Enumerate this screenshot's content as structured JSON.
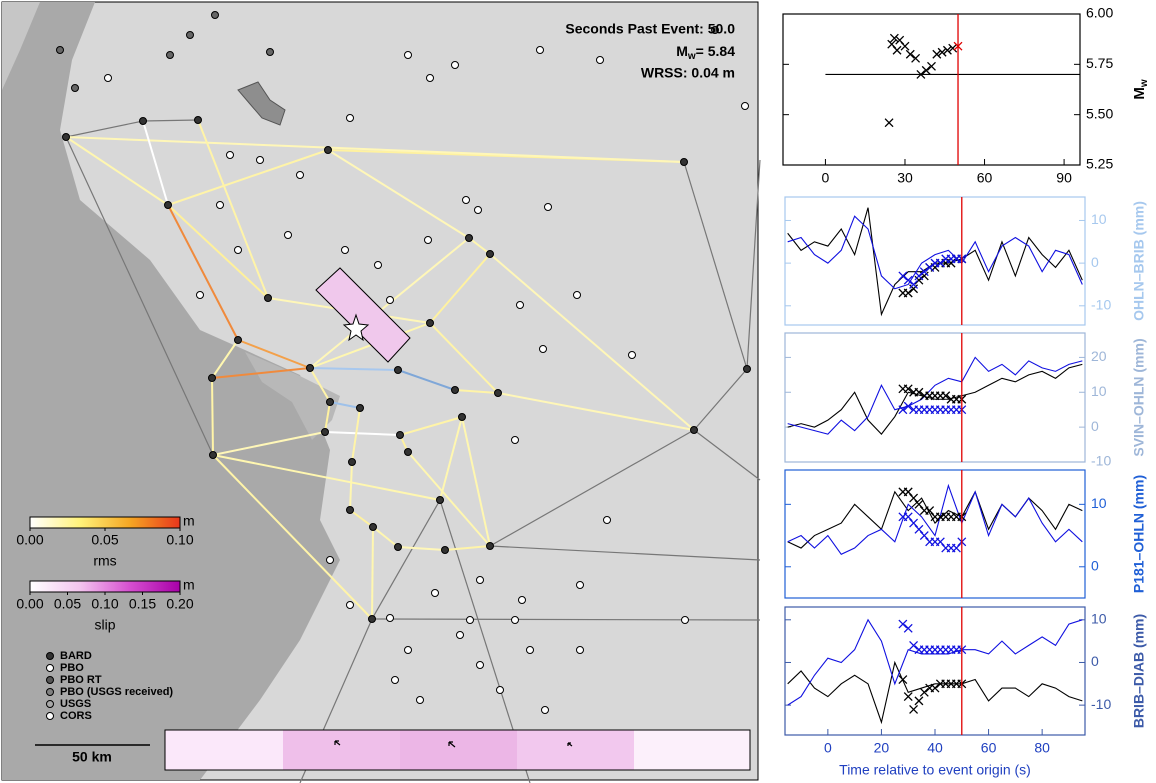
{
  "map": {
    "annotations": {
      "seconds": "Seconds Past Event: 50.0",
      "mw_symbol": "M",
      "mw_sub": "w",
      "mw_value": "= 5.84",
      "wrss": "WRSS: 0.04 m"
    },
    "colorbars": [
      {
        "label": "rms",
        "unit": "m",
        "lim": [
          0,
          0.1
        ],
        "colors": [
          "#ffffff",
          "#fff27a",
          "#f5a623",
          "#e8361c"
        ],
        "ticks": [
          {
            "value": 0,
            "label": "0.00"
          },
          {
            "value": 0.05,
            "label": "0.05"
          },
          {
            "value": 0.1,
            "label": "0.10"
          }
        ]
      },
      {
        "label": "slip",
        "unit": "m",
        "lim": [
          0,
          0.2
        ],
        "colors": [
          "#ffffff",
          "#f3c4ee",
          "#d64fd0",
          "#a800a8"
        ],
        "ticks": [
          {
            "value": 0,
            "label": "0.00"
          },
          {
            "value": 0.05,
            "label": "0.05"
          },
          {
            "value": 0.1,
            "label": "0.10"
          },
          {
            "value": 0.15,
            "label": "0.15"
          },
          {
            "value": 0.2,
            "label": "0.20"
          }
        ]
      }
    ],
    "legend": [
      {
        "label": "BARD",
        "color": "#333333"
      },
      {
        "label": "PBO",
        "color": "#ffffff"
      },
      {
        "label": "PBO RT",
        "color": "#555555"
      },
      {
        "label": "PBO (USGS received)",
        "color": "#808080"
      },
      {
        "label": "USGS",
        "color": "#a8a8a8"
      },
      {
        "label": "CORS",
        "color": "#ffffff"
      }
    ],
    "scale": "50 km"
  },
  "chart_data": [
    {
      "type": "scatter",
      "ylabel": "M",
      "ylabel_sub": "w",
      "axis_color": "#000000",
      "xlim": [
        -16,
        96
      ],
      "ylim": [
        5.25,
        6.0
      ],
      "xticks": [
        0,
        30,
        60,
        90
      ],
      "yticks": [
        5.25,
        {
          "value": 5.5,
          "label": "5.50"
        },
        5.75,
        {
          "value": 6.0,
          "label": "6.00"
        }
      ],
      "vline": 50,
      "series": [
        {
          "style": "line",
          "color": "#000000",
          "x": [
            0,
            96
          ],
          "values": [
            5.7,
            5.7
          ]
        },
        {
          "style": "cross",
          "color": "#000000",
          "x": [
            24,
            25,
            26,
            27,
            28,
            30,
            32,
            34,
            36,
            38,
            40,
            42,
            44,
            46,
            48
          ],
          "values": [
            5.46,
            5.85,
            5.88,
            5.82,
            5.87,
            5.84,
            5.8,
            5.78,
            5.7,
            5.72,
            5.74,
            5.8,
            5.81,
            5.82,
            5.83
          ]
        },
        {
          "style": "cross",
          "color": "#e00000",
          "x": [
            50
          ],
          "values": [
            5.84
          ]
        }
      ]
    },
    {
      "type": "line",
      "ylabel": "OHLN–BRIB (mm)",
      "axis_color": "#a6c8ee",
      "xlim": [
        -16,
        96
      ],
      "ylim": [
        -14.5,
        15.5
      ],
      "yticks": [
        -10,
        0,
        10
      ],
      "vline": 50,
      "series": [
        {
          "style": "line",
          "color": "#000000",
          "x": [
            -15,
            -10,
            -5,
            0,
            5,
            10,
            15,
            20,
            25,
            30,
            35,
            40,
            45,
            50,
            55,
            60,
            65,
            70,
            75,
            80,
            85,
            90,
            95
          ],
          "values": [
            7,
            3,
            5,
            4,
            8,
            2,
            13,
            -12,
            -5,
            -2,
            -2,
            0,
            0,
            1,
            3,
            -4,
            5,
            -3,
            6,
            2,
            -1,
            3,
            -4
          ]
        },
        {
          "style": "line",
          "color": "#1010e0",
          "x": [
            -15,
            -10,
            -5,
            0,
            5,
            10,
            15,
            20,
            25,
            30,
            35,
            40,
            45,
            50,
            55,
            60,
            65,
            70,
            75,
            80,
            85,
            90,
            95
          ],
          "values": [
            5,
            6,
            2,
            0,
            3,
            11,
            8,
            -3,
            -6,
            -5,
            0,
            2,
            3,
            0,
            5,
            -2,
            4,
            6,
            4,
            -2,
            3,
            2,
            -5
          ]
        },
        {
          "style": "cross",
          "color": "#000000",
          "x": [
            28,
            30,
            32,
            34,
            36,
            38,
            40,
            42,
            44,
            46,
            48,
            50
          ],
          "values": [
            -7,
            -7,
            -6,
            -4,
            -3,
            -1,
            -1,
            0,
            0,
            0,
            1,
            1
          ]
        },
        {
          "style": "cross",
          "color": "#1010e0",
          "x": [
            28,
            30,
            32,
            34,
            36,
            38,
            40,
            42,
            44,
            46,
            48,
            50
          ],
          "values": [
            -3,
            -4,
            -5,
            -3,
            -2,
            -1,
            0,
            0,
            1,
            1,
            1,
            1
          ]
        }
      ]
    },
    {
      "type": "line",
      "ylabel": "SVIN–OHLN (mm)",
      "axis_color": "#9eb6d8",
      "xlim": [
        -16,
        96
      ],
      "ylim": [
        -10,
        27
      ],
      "yticks": [
        -10,
        0,
        10,
        20
      ],
      "vline": 50,
      "series": [
        {
          "style": "line",
          "color": "#000000",
          "x": [
            -15,
            -10,
            -5,
            0,
            5,
            10,
            15,
            20,
            25,
            30,
            35,
            40,
            45,
            50,
            55,
            60,
            65,
            70,
            75,
            80,
            85,
            90,
            95
          ],
          "values": [
            0,
            1,
            0,
            2,
            5,
            10,
            2,
            -2,
            3,
            10,
            9,
            8,
            8,
            9,
            10,
            12,
            14,
            13,
            15,
            16,
            14,
            17,
            18
          ]
        },
        {
          "style": "line",
          "color": "#1010e0",
          "x": [
            -15,
            -10,
            -5,
            0,
            5,
            10,
            15,
            20,
            25,
            30,
            35,
            40,
            45,
            50,
            55,
            60,
            65,
            70,
            75,
            80,
            85,
            90,
            95
          ],
          "values": [
            1,
            0,
            -1,
            -2,
            2,
            -1,
            3,
            12,
            5,
            6,
            8,
            12,
            14,
            13,
            20,
            16,
            18,
            15,
            19,
            17,
            16,
            18,
            19
          ]
        },
        {
          "style": "cross",
          "color": "#000000",
          "x": [
            28,
            30,
            32,
            34,
            36,
            38,
            40,
            42,
            44,
            46,
            48,
            50
          ],
          "values": [
            11,
            11,
            10,
            10,
            9,
            9,
            9,
            9,
            9,
            8,
            8,
            8
          ]
        },
        {
          "style": "cross",
          "color": "#1010e0",
          "x": [
            28,
            30,
            32,
            34,
            36,
            38,
            40,
            42,
            44,
            46,
            48,
            50
          ],
          "values": [
            5,
            6,
            5,
            5,
            5,
            5,
            5,
            5,
            5,
            5,
            5,
            5
          ]
        }
      ]
    },
    {
      "type": "line",
      "ylabel": "P181–OHLN (mm)",
      "axis_color": "#1f5fd6",
      "xlim": [
        -16,
        96
      ],
      "ylim": [
        -5,
        15.5
      ],
      "yticks": [
        0,
        10
      ],
      "vline": 50,
      "series": [
        {
          "style": "line",
          "color": "#000000",
          "x": [
            -15,
            -10,
            -5,
            0,
            5,
            10,
            15,
            20,
            25,
            30,
            35,
            40,
            45,
            50,
            55,
            60,
            65,
            70,
            75,
            80,
            85,
            90,
            95
          ],
          "values": [
            4,
            3,
            5,
            6,
            7,
            10,
            8,
            6,
            12,
            9,
            11,
            7,
            9,
            8,
            12,
            6,
            10,
            8,
            11,
            9,
            6,
            10,
            9
          ]
        },
        {
          "style": "line",
          "color": "#1010e0",
          "x": [
            -15,
            -10,
            -5,
            0,
            5,
            10,
            15,
            20,
            25,
            30,
            35,
            40,
            45,
            50,
            55,
            60,
            65,
            70,
            75,
            80,
            85,
            90,
            95
          ],
          "values": [
            4,
            5,
            3,
            5,
            2,
            3,
            5,
            6,
            4,
            10,
            8,
            5,
            13,
            7,
            12,
            5,
            10,
            8,
            11,
            7,
            4,
            6,
            4
          ]
        },
        {
          "style": "cross",
          "color": "#000000",
          "x": [
            28,
            30,
            32,
            34,
            36,
            38,
            40,
            42,
            44,
            46,
            48,
            50
          ],
          "values": [
            12,
            12,
            11,
            10,
            9,
            9,
            8,
            8,
            8,
            8,
            8,
            8
          ]
        },
        {
          "style": "cross",
          "color": "#1010e0",
          "x": [
            28,
            30,
            32,
            34,
            36,
            38,
            40,
            42,
            44,
            46,
            48,
            50
          ],
          "values": [
            8,
            8,
            7,
            6,
            5,
            4,
            4,
            4,
            3,
            3,
            3,
            4
          ]
        }
      ]
    },
    {
      "type": "line",
      "ylabel": "BRIB–DIAB (mm)",
      "axis_color": "#3c5aa8",
      "xlabel": "Time relative to event origin (s)",
      "xlim": [
        -16,
        96
      ],
      "ylim": [
        -17,
        13
      ],
      "xticks": [
        0,
        20,
        40,
        60,
        80
      ],
      "yticks": [
        -10,
        0,
        10
      ],
      "vline": 50,
      "series": [
        {
          "style": "line",
          "color": "#000000",
          "x": [
            -15,
            -10,
            -5,
            0,
            5,
            10,
            15,
            20,
            25,
            30,
            35,
            40,
            45,
            50,
            55,
            60,
            65,
            70,
            75,
            80,
            85,
            90,
            95
          ],
          "values": [
            -5,
            -2,
            -6,
            -8,
            -5,
            -3,
            -5,
            -14,
            0,
            -7,
            -6,
            -5,
            -5,
            -5,
            -4,
            -9,
            -6,
            -6,
            -8,
            -5,
            -6,
            -8,
            -9
          ]
        },
        {
          "style": "line",
          "color": "#1010e0",
          "x": [
            -15,
            -10,
            -5,
            0,
            5,
            10,
            15,
            20,
            25,
            30,
            35,
            40,
            45,
            50,
            55,
            60,
            65,
            70,
            75,
            80,
            85,
            90,
            95
          ],
          "values": [
            -10,
            -8,
            -3,
            1,
            0,
            3,
            10,
            5,
            -5,
            3,
            2,
            2,
            2,
            3,
            3,
            2,
            5,
            2,
            4,
            6,
            4,
            9,
            10
          ]
        },
        {
          "style": "cross",
          "color": "#000000",
          "x": [
            28,
            30,
            32,
            34,
            36,
            38,
            40,
            42,
            44,
            46,
            48,
            50
          ],
          "values": [
            -4,
            -8,
            -11,
            -9,
            -7,
            -6,
            -6,
            -5,
            -5,
            -5,
            -5,
            -5
          ]
        },
        {
          "style": "cross",
          "color": "#1010e0",
          "x": [
            28,
            30,
            32,
            34,
            36,
            38,
            40,
            42,
            44,
            46,
            48,
            50
          ],
          "values": [
            9,
            8,
            4,
            3,
            3,
            3,
            3,
            3,
            3,
            3,
            3,
            3
          ]
        }
      ]
    }
  ]
}
